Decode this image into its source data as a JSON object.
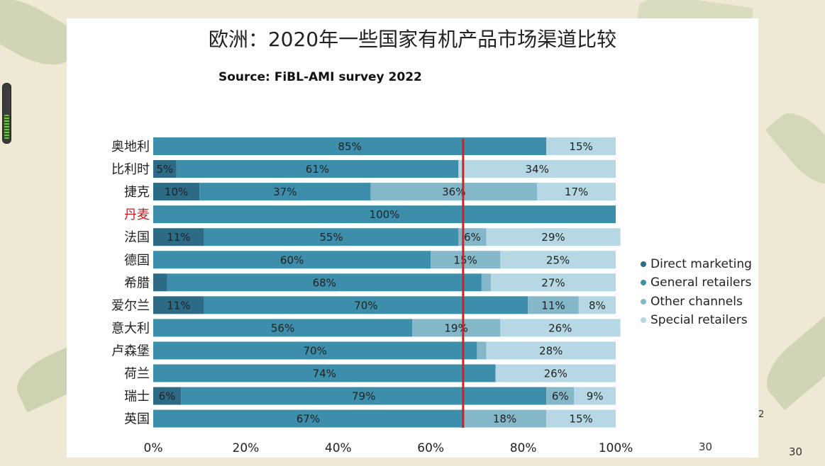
{
  "title": "欧洲：2020年一些国家有机产品市场渠道比较",
  "subtitle": "Source: FiBL-AMI survey 2022",
  "page_number_primary": "30",
  "page_number_secondary": "30",
  "page_small_mark": "2",
  "colors": {
    "direct": "#2c6a86",
    "general": "#3d8eaa",
    "other": "#84b8c9",
    "special": "#b6d8e4",
    "marker": "#d62020",
    "highlight_label": "#c8191e"
  },
  "chart_data": {
    "type": "bar",
    "orientation": "horizontal",
    "stacked": true,
    "xlim": [
      0,
      100
    ],
    "ticks": [
      "0%",
      "20%",
      "40%",
      "60%",
      "80%",
      "100%"
    ],
    "tick_values": [
      0,
      20,
      40,
      60,
      80,
      100
    ],
    "marker_line_value": 67,
    "legend_position": "right",
    "categories": [
      "奥地利",
      "比利时",
      "捷克",
      "丹麦",
      "法国",
      "德国",
      "希腊",
      "爱尔兰",
      "意大利",
      "卢森堡",
      "荷兰",
      "瑞士",
      "英国"
    ],
    "highlight_category": "丹麦",
    "series": [
      {
        "name": "Direct marketing",
        "color_key": "direct",
        "values": [
          0,
          5,
          10,
          0,
          11,
          0,
          3,
          11,
          0,
          0,
          0,
          6,
          0
        ],
        "labels": [
          "",
          "5%",
          "10%",
          "",
          "11%",
          "",
          "",
          "11%",
          "",
          "",
          "",
          "6%",
          ""
        ]
      },
      {
        "name": "General retailers",
        "color_key": "general",
        "values": [
          85,
          61,
          37,
          100,
          55,
          60,
          68,
          70,
          56,
          70,
          74,
          79,
          67
        ],
        "labels": [
          "85%",
          "61%",
          "37%",
          "100%",
          "55%",
          "60%",
          "68%",
          "70%",
          "56%",
          "70%",
          "74%",
          "79%",
          "67%"
        ]
      },
      {
        "name": "Other channels",
        "color_key": "other",
        "values": [
          0,
          0,
          36,
          0,
          6,
          15,
          2,
          11,
          19,
          2,
          0,
          6,
          18
        ],
        "labels": [
          "",
          "",
          "36%",
          "",
          "6%",
          "15%",
          "",
          "11%",
          "19%",
          "",
          "",
          "6%",
          "18%"
        ]
      },
      {
        "name": "Special retailers",
        "color_key": "special",
        "values": [
          15,
          34,
          17,
          0,
          29,
          25,
          27,
          8,
          26,
          28,
          26,
          9,
          15
        ],
        "labels": [
          "15%",
          "34%",
          "17%",
          "",
          "29%",
          "25%",
          "27%",
          "8%",
          "26%",
          "28%",
          "26%",
          "9%",
          "15%"
        ]
      }
    ]
  }
}
